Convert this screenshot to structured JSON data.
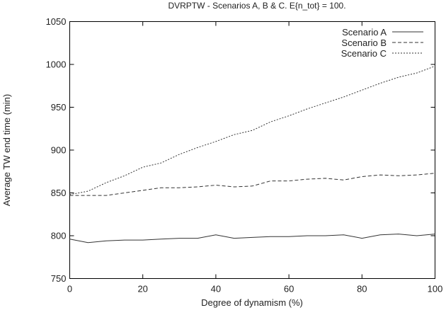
{
  "chart_data": {
    "type": "line",
    "title": "DVRPTW - Scenarios A, B & C. E{n_tot} = 100.",
    "xlabel": "Degree of dynamism (%)",
    "ylabel": "Average TW end time (min)",
    "xlim": [
      0,
      100
    ],
    "ylim": [
      750,
      1050
    ],
    "xticks": [
      "0",
      "20",
      "40",
      "60",
      "80",
      "100"
    ],
    "yticks": [
      "750",
      "800",
      "850",
      "900",
      "950",
      "1000",
      "1050"
    ],
    "grid": false,
    "legend_position": "top-right",
    "x": [
      0,
      5,
      10,
      15,
      20,
      25,
      30,
      35,
      40,
      45,
      50,
      55,
      60,
      65,
      70,
      75,
      80,
      85,
      90,
      95,
      100
    ],
    "series": [
      {
        "name": "Scenario A",
        "style": "solid",
        "values": [
          796,
          792,
          794,
          795,
          795,
          796,
          797,
          797,
          801,
          797,
          798,
          799,
          799,
          800,
          800,
          801,
          797,
          801,
          802,
          800,
          802
        ]
      },
      {
        "name": "Scenario B",
        "style": "dashed",
        "values": [
          847,
          847,
          847,
          850,
          853,
          856,
          856,
          857,
          859,
          857,
          858,
          864,
          864,
          866,
          867,
          865,
          869,
          871,
          870,
          871,
          873
        ]
      },
      {
        "name": "Scenario C",
        "style": "dotted",
        "values": [
          848,
          852,
          862,
          870,
          880,
          885,
          895,
          903,
          910,
          918,
          923,
          933,
          940,
          948,
          955,
          962,
          970,
          978,
          985,
          990,
          998
        ]
      }
    ]
  }
}
